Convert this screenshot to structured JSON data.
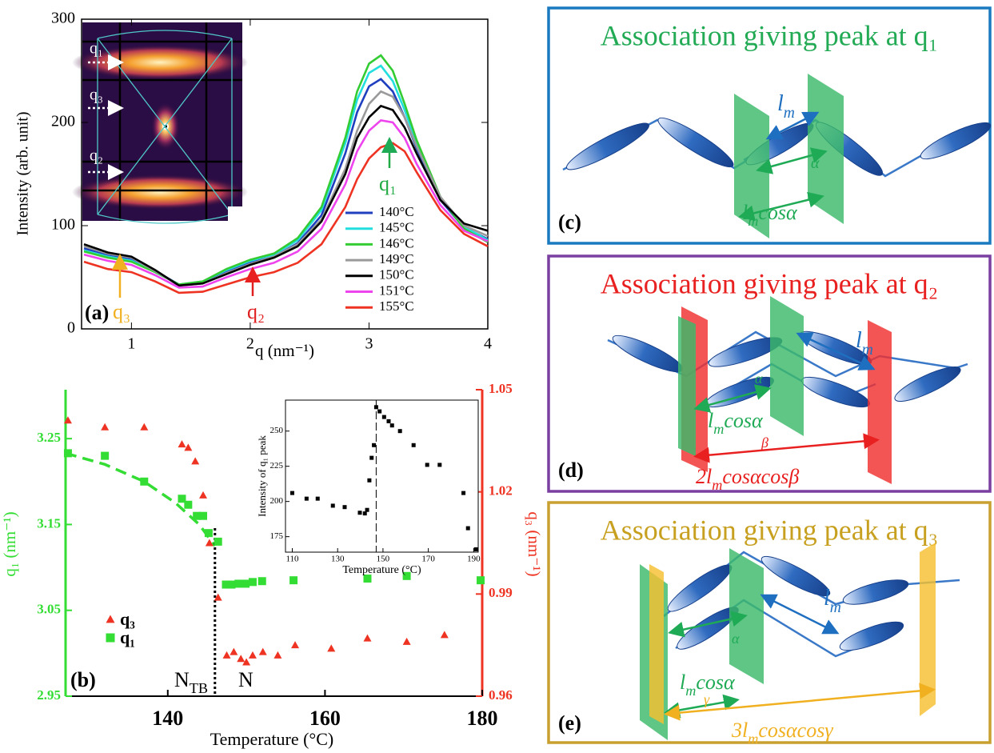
{
  "chart_data": [
    {
      "type": "line",
      "x_label": "q (nm⁻¹)",
      "y_label": "Intensity (arb. unit)",
      "xlim": [
        0.58,
        4
      ],
      "ylim": [
        0,
        300
      ],
      "xticks": [
        1,
        2,
        3,
        4
      ],
      "yticks": [
        0,
        100,
        200,
        300
      ],
      "x": [
        0.6,
        0.8,
        1.0,
        1.2,
        1.4,
        1.6,
        1.8,
        2.0,
        2.2,
        2.4,
        2.6,
        2.8,
        2.9,
        3.0,
        3.1,
        3.2,
        3.3,
        3.4,
        3.6,
        3.8,
        4.0
      ],
      "series": [
        {
          "name": "140°C",
          "color": "#1f3fbf",
          "values": [
            78,
            72,
            68,
            56,
            43,
            45,
            56,
            64,
            70,
            83,
            110,
            170,
            210,
            235,
            242,
            230,
            205,
            175,
            125,
            98,
            87
          ]
        },
        {
          "name": "145°C",
          "color": "#22dede",
          "values": [
            76,
            70,
            66,
            55,
            43,
            46,
            57,
            66,
            72,
            86,
            115,
            180,
            222,
            248,
            255,
            240,
            212,
            180,
            127,
            99,
            86
          ]
        },
        {
          "name": "146°C",
          "color": "#33cc33",
          "values": [
            75,
            69,
            65,
            55,
            43,
            46,
            58,
            67,
            73,
            88,
            118,
            185,
            230,
            257,
            265,
            250,
            218,
            183,
            128,
            97,
            84
          ]
        },
        {
          "name": "149°C",
          "color": "#9a9a9a",
          "values": [
            80,
            73,
            69,
            56,
            42,
            44,
            54,
            63,
            70,
            82,
            106,
            155,
            192,
            218,
            230,
            225,
            205,
            177,
            128,
            100,
            90
          ]
        },
        {
          "name": "150°C",
          "color": "#000000",
          "values": [
            82,
            74,
            70,
            57,
            42,
            44,
            53,
            62,
            69,
            80,
            104,
            150,
            185,
            205,
            216,
            212,
            195,
            170,
            125,
            102,
            95
          ]
        },
        {
          "name": "151°C",
          "color": "#ee44ee",
          "values": [
            72,
            66,
            62,
            52,
            40,
            41,
            50,
            58,
            64,
            75,
            97,
            140,
            172,
            192,
            202,
            200,
            185,
            160,
            120,
            95,
            85
          ]
        },
        {
          "name": "155°C",
          "color": "#ee3322",
          "values": [
            65,
            58,
            55,
            46,
            35,
            36,
            43,
            50,
            55,
            64,
            82,
            118,
            145,
            165,
            176,
            180,
            172,
            152,
            115,
            92,
            80
          ]
        }
      ],
      "annotations": [
        {
          "text": "(a)"
        },
        {
          "text": "q₁",
          "color": "#22aa44"
        },
        {
          "text": "q₂",
          "color": "#e02020"
        },
        {
          "text": "q₃",
          "color": "#f0b020"
        }
      ],
      "inset_labels": [
        "q₁",
        "q₃",
        "q₂"
      ]
    },
    {
      "type": "scatter",
      "x_label": "Temperature (°C)",
      "y_label": "q₁ (nm⁻¹)",
      "y2_label": "q₃ (nm⁻¹)",
      "xlim": [
        127,
        180
      ],
      "ylim": [
        2.95,
        3.307
      ],
      "y2lim": [
        0.96,
        1.05
      ],
      "xticks": [
        140,
        160,
        180
      ],
      "yticks": [
        2.95,
        3.05,
        3.15,
        3.25
      ],
      "y2ticks": [
        0.96,
        0.99,
        1.02,
        1.05
      ],
      "series": [
        {
          "name": "q₃",
          "color": "#ee3322",
          "marker": "triangle",
          "axis": "y2",
          "x": [
            127.3,
            132,
            137,
            141.8,
            142.6,
            143.5,
            144.5,
            145.3,
            146.4,
            147.5,
            148.4,
            149.3,
            150,
            150.8,
            152.1,
            154,
            156.2,
            160.8,
            165.4,
            170.4,
            175.2
          ],
          "values": [
            1.041,
            1.039,
            1.039,
            1.034,
            1.033,
            1.029,
            1.019,
            1.005,
            0.989,
            0.972,
            0.973,
            0.971,
            0.97,
            0.972,
            0.973,
            0.972,
            0.975,
            0.974,
            0.977,
            0.976,
            0.978
          ]
        },
        {
          "name": "q₁",
          "color": "#33dd33",
          "marker": "square",
          "x": [
            127.3,
            132,
            137,
            141.8,
            142.6,
            143.7,
            144.5,
            145.2,
            146.4,
            147.4,
            148.1,
            149,
            149.9,
            150.8,
            152,
            156,
            165.4,
            170.4,
            179.8
          ],
          "values": [
            3.233,
            3.23,
            3.2,
            3.18,
            3.173,
            3.16,
            3.16,
            3.14,
            3.13,
            3.08,
            3.08,
            3.081,
            3.081,
            3.083,
            3.084,
            3.085,
            3.087,
            3.09,
            3.085
          ]
        }
      ],
      "fit": {
        "color": "#33dd33",
        "x": [
          127,
          132,
          137,
          141,
          144,
          146
        ],
        "values": [
          3.233,
          3.22,
          3.2,
          3.175,
          3.15,
          3.125
        ]
      },
      "vline": 146,
      "annotations": [
        {
          "text": "(b)"
        },
        {
          "text": [
            "N",
            "TB"
          ]
        },
        {
          "text": "N"
        }
      ]
    },
    {
      "type": "scatter",
      "x_label": "Temperature (°C)",
      "y_label": "Intensity of q₁ peak",
      "xlim": [
        107,
        192
      ],
      "ylim": [
        164,
        272
      ],
      "xticks": [
        110,
        130,
        150,
        170,
        190
      ],
      "yticks": [
        175,
        200,
        225,
        250
      ],
      "series": [
        {
          "color": "#000000",
          "marker": "square",
          "x": [
            110,
            116.3,
            121.2,
            127.9,
            133.1,
            139.8,
            142,
            143,
            144,
            145,
            146,
            147,
            148.5,
            150.5,
            152.5,
            154,
            157.5,
            163.5,
            169.5,
            175,
            185.5,
            187.5,
            191
          ],
          "values": [
            206,
            202,
            202,
            197,
            196,
            192,
            191.5,
            194,
            215,
            231,
            240,
            267,
            264,
            260,
            257,
            254,
            250,
            240,
            226,
            226,
            206,
            181,
            166
          ]
        }
      ],
      "vline": 147
    }
  ],
  "diagrams": [
    {
      "title": "Association giving peak at q₁",
      "color": "#22aa55",
      "label": "(c)",
      "texts": [
        [
          "l",
          "m"
        ],
        [
          "α"
        ],
        [
          "l",
          "m",
          "cosα"
        ]
      ]
    },
    {
      "title": "Association giving peak at q₂",
      "color": "#e82020",
      "label": "(d)",
      "texts": [
        [
          "l",
          "m"
        ],
        [
          "α"
        ],
        [
          "l",
          "m",
          "cosα"
        ],
        [
          "β"
        ],
        [
          "2l",
          "m",
          "cosαcosβ"
        ]
      ]
    },
    {
      "title": "Association giving peak at q₃",
      "color": "#c8a020",
      "label": "(e)",
      "texts": [
        [
          "l",
          "m"
        ],
        [
          "α"
        ],
        [
          "l",
          "m",
          "cosα"
        ],
        [
          "γ"
        ],
        [
          "3l",
          "m",
          "cosαcosγ"
        ]
      ]
    }
  ]
}
